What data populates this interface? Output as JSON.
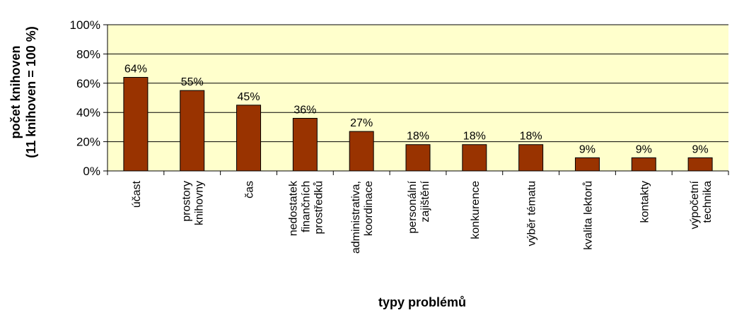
{
  "chart_data": {
    "type": "bar",
    "categories": [
      [
        "účast"
      ],
      [
        "prostory",
        "knihovny"
      ],
      [
        "čas"
      ],
      [
        "nedostatek",
        "finančních",
        "prostředků"
      ],
      [
        "administrativa,",
        "koordinace"
      ],
      [
        "personální",
        "zajištění"
      ],
      [
        "konkurence"
      ],
      [
        "výběr tématu"
      ],
      [
        "kvalita lektorů"
      ],
      [
        "kontakty"
      ],
      [
        "výpočetní",
        "technika"
      ]
    ],
    "values": [
      64,
      55,
      45,
      36,
      27,
      18,
      18,
      18,
      9,
      9,
      9
    ],
    "data_labels": [
      "64%",
      "55%",
      "45%",
      "36%",
      "27%",
      "18%",
      "18%",
      "18%",
      "9%",
      "9%",
      "9%"
    ],
    "ylim": [
      0,
      100
    ],
    "yticks": [
      0,
      20,
      40,
      60,
      80,
      100
    ],
    "ytick_labels": [
      "0%",
      "20%",
      "40%",
      "60%",
      "80%",
      "100%"
    ],
    "xlabel": "typy problémů",
    "ylabel": [
      "počet knihoven",
      "(11 knihoven = 100 %)"
    ],
    "plot_background": "#FFFFCC",
    "bar_color": "#993300",
    "grid": true,
    "legend": "none"
  }
}
